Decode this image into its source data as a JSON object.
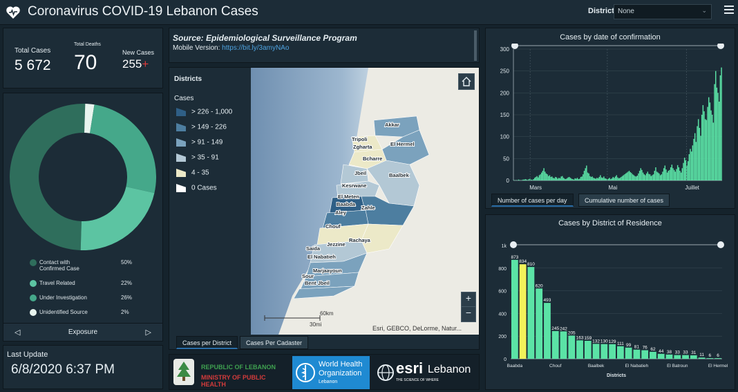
{
  "header": {
    "title": "Coronavirus COVID-19 Lebanon Cases",
    "district_label": "District",
    "district_value": "None"
  },
  "stats": {
    "total_cases_label": "Total Cases",
    "total_cases_value": "5 672",
    "total_deaths_label": "Total Deaths",
    "total_deaths_value": "70",
    "new_cases_label": "New Cases",
    "new_cases_value": "255",
    "new_cases_mark": "+"
  },
  "exposure": {
    "title": "Exposure",
    "items": [
      {
        "label": "Contact with Confirmed Case",
        "pct": "50%",
        "color": "#2f6e5c"
      },
      {
        "label": "Travel Related",
        "pct": "22%",
        "color": "#5cc4a2"
      },
      {
        "label": "Under Investigation",
        "pct": "26%",
        "color": "#45a88a"
      },
      {
        "label": "Unidentified Source",
        "pct": "2%",
        "color": "#e8f4ee"
      }
    ],
    "values": [
      50,
      22,
      26,
      2
    ]
  },
  "update": {
    "label": "Last Update",
    "value": "6/8/2020 6:37 PM"
  },
  "source": {
    "title": "Source: Epidemiological Surveillance Program",
    "mobile_label": "Mobile Version:",
    "mobile_link": "https://bit.ly/3amyNAo"
  },
  "map": {
    "legend_title": "Districts",
    "legend_subtitle": "Cases",
    "legend_items": [
      {
        "label": "> 226 - 1,000",
        "color": "#2f5f86"
      },
      {
        "label": "> 149 - 226",
        "color": "#4d7ea0"
      },
      {
        "label": "> 91 - 149",
        "color": "#7ba2bd"
      },
      {
        "label": "> 35 - 91",
        "color": "#b3c8d5"
      },
      {
        "label": "4 - 35",
        "color": "#ece9c8"
      },
      {
        "label": "0 Cases",
        "color": "#ffffff"
      }
    ],
    "place_labels": [
      "Akkar",
      "Tripoli",
      "Zgharta",
      "El Hermel",
      "Bcharre",
      "Jbeil",
      "Baalbek",
      "Kesrwane",
      "El Meten",
      "Baabda",
      "Zahle",
      "Aley",
      "Chouf",
      "Jezzine",
      "Rachaya",
      "Saida",
      "El Nabatieh",
      "Marjaayoun",
      "Sour",
      "Bent Jbeil"
    ],
    "scale_km": "60km",
    "scale_mi": "30mi",
    "attribution": "Esri, GEBCO, DeLorme, Natur...",
    "tabs": [
      "Cases per District",
      "Cases Per Cadaster"
    ],
    "home_icon": "home-icon",
    "zoom_in": "+",
    "zoom_out": "−"
  },
  "logos": {
    "republic_line1": "REPUBLIC OF LEBANON",
    "republic_line2": "MINISTRY OF PUBLIC HEALTH",
    "who_line1": "World Health",
    "who_line2": "Organization",
    "who_line3": "Lebanon",
    "esri_name": "esri",
    "esri_tagline": "THE SCIENCE OF WHERE",
    "esri_country": "Lebanon"
  },
  "chart1": {
    "title": "Cases by  date of confirmation",
    "tabs": [
      "Number of cases per day",
      "Cumulative number of cases"
    ]
  },
  "chart2": {
    "title": "Cases by District of Residence",
    "xlabel": "Districts"
  },
  "chart_data": [
    {
      "type": "bar",
      "title": "Cases by  date of confirmation",
      "ylim": [
        0,
        300
      ],
      "yticks": [
        0,
        50,
        100,
        150,
        200,
        250,
        300
      ],
      "xticks": [
        "Mars",
        "Mai",
        "Juillet"
      ],
      "values": [
        1,
        0,
        1,
        0,
        2,
        1,
        0,
        1,
        2,
        2,
        3,
        2,
        1,
        3,
        4,
        2,
        1,
        3,
        6,
        8,
        10,
        7,
        12,
        14,
        18,
        22,
        28,
        20,
        16,
        14,
        10,
        12,
        8,
        9,
        6,
        5,
        8,
        7,
        4,
        6,
        5,
        9,
        10,
        6,
        4,
        3,
        5,
        7,
        8,
        6,
        4,
        3,
        2,
        5,
        4,
        6,
        3,
        4,
        8,
        9,
        14,
        22,
        28,
        34,
        18,
        16,
        10,
        8,
        9,
        6,
        5,
        4,
        6,
        5,
        8,
        12,
        7,
        6,
        9,
        5,
        4,
        3,
        4,
        6,
        3,
        5,
        8,
        6,
        9,
        12,
        7,
        5,
        6,
        8,
        10,
        12,
        14,
        16,
        18,
        20,
        22,
        19,
        17,
        14,
        12,
        10,
        9,
        11,
        16,
        22,
        28,
        24,
        18,
        14,
        12,
        16,
        20,
        15,
        14,
        10,
        12,
        14,
        22,
        30,
        20,
        18,
        16,
        12,
        14,
        20,
        28,
        34,
        25,
        18,
        22,
        24,
        30,
        36,
        28,
        24,
        20,
        26,
        35,
        30,
        22,
        18,
        28,
        40,
        52,
        46,
        34,
        44,
        60,
        72,
        66,
        80,
        95,
        108,
        88,
        124,
        140,
        120,
        102,
        150,
        172,
        158,
        140,
        138,
        168,
        190,
        178,
        160,
        150,
        132,
        220,
        250,
        212,
        200,
        180,
        240,
        258
      ]
    },
    {
      "type": "bar",
      "title": "Cases by District of Residence",
      "xlabel": "Districts",
      "ylim": [
        0,
        1000
      ],
      "yticks": [
        0,
        200,
        400,
        600,
        800
      ],
      "ytop_label": "1k",
      "categories": [
        "Baabda",
        "",
        "",
        "",
        "",
        "Chouf",
        "",
        "",
        "",
        "",
        "Baalbek",
        "",
        "",
        "",
        "",
        "El Nabatieh",
        "",
        "",
        "",
        "",
        "El Batroun",
        "",
        "",
        "",
        "",
        "El Hermel"
      ],
      "values": [
        873,
        834,
        810,
        620,
        493,
        245,
        242,
        205,
        163,
        159,
        132,
        130,
        129,
        111,
        99,
        81,
        76,
        62,
        44,
        38,
        33,
        33,
        31,
        11,
        6,
        6
      ],
      "highlight_index": 1,
      "colors": {
        "bar": "#5be3a6",
        "highlight": "#f2f25a"
      }
    }
  ]
}
